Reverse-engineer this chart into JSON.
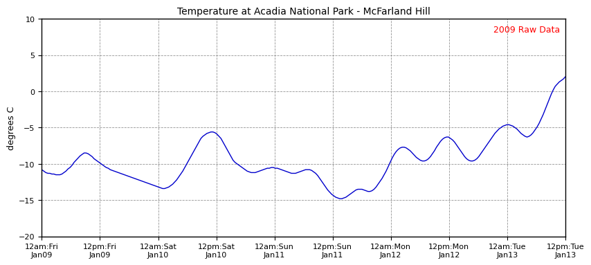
{
  "title": "Temperature at Acadia National Park - McFarland Hill",
  "ylabel": "degrees C",
  "annotation": "2009 Raw Data",
  "annotation_color": "#ff0000",
  "line_color": "#0000cc",
  "background_color": "#ffffff",
  "ylim": [
    -20,
    10
  ],
  "yticks": [
    -20,
    -15,
    -10,
    -5,
    0,
    5,
    10
  ],
  "x_tick_labels": [
    "12am:Fri\nJan09",
    "12pm:Fri\nJan09",
    "12am:Sat\nJan10",
    "12pm:Sat\nJan10",
    "12am:Sun\nJan11",
    "12pm:Sun\nJan11",
    "12am:Mon\nJan12",
    "12pm:Mon\nJan12",
    "12am:Tue\nJan13",
    "12pm:Tue\nJan13"
  ],
  "temperature_data": [
    -10.8,
    -11.0,
    -11.2,
    -11.3,
    -11.3,
    -11.4,
    -11.4,
    -11.5,
    -11.5,
    -11.5,
    -11.4,
    -11.2,
    -11.0,
    -10.7,
    -10.5,
    -10.2,
    -9.8,
    -9.5,
    -9.2,
    -8.9,
    -8.7,
    -8.5,
    -8.5,
    -8.6,
    -8.8,
    -9.0,
    -9.3,
    -9.5,
    -9.7,
    -9.9,
    -10.1,
    -10.3,
    -10.5,
    -10.6,
    -10.8,
    -10.9,
    -11.0,
    -11.1,
    -11.2,
    -11.3,
    -11.4,
    -11.5,
    -11.6,
    -11.7,
    -11.8,
    -11.9,
    -12.0,
    -12.1,
    -12.2,
    -12.3,
    -12.4,
    -12.5,
    -12.6,
    -12.7,
    -12.8,
    -12.9,
    -13.0,
    -13.1,
    -13.2,
    -13.3,
    -13.4,
    -13.4,
    -13.3,
    -13.2,
    -13.0,
    -12.8,
    -12.5,
    -12.2,
    -11.8,
    -11.4,
    -11.0,
    -10.5,
    -10.0,
    -9.5,
    -9.0,
    -8.5,
    -8.0,
    -7.5,
    -7.0,
    -6.5,
    -6.2,
    -6.0,
    -5.8,
    -5.7,
    -5.6,
    -5.6,
    -5.7,
    -5.9,
    -6.2,
    -6.5,
    -7.0,
    -7.5,
    -8.0,
    -8.5,
    -9.0,
    -9.5,
    -9.8,
    -10.0,
    -10.2,
    -10.4,
    -10.6,
    -10.8,
    -11.0,
    -11.1,
    -11.2,
    -11.2,
    -11.2,
    -11.1,
    -11.0,
    -10.9,
    -10.8,
    -10.7,
    -10.6,
    -10.6,
    -10.5,
    -10.5,
    -10.6,
    -10.6,
    -10.7,
    -10.8,
    -10.9,
    -11.0,
    -11.1,
    -11.2,
    -11.3,
    -11.3,
    -11.3,
    -11.2,
    -11.1,
    -11.0,
    -10.9,
    -10.8,
    -10.8,
    -10.8,
    -10.9,
    -11.1,
    -11.3,
    -11.6,
    -12.0,
    -12.4,
    -12.8,
    -13.2,
    -13.6,
    -13.9,
    -14.2,
    -14.4,
    -14.6,
    -14.7,
    -14.8,
    -14.8,
    -14.7,
    -14.6,
    -14.4,
    -14.2,
    -14.0,
    -13.8,
    -13.6,
    -13.5,
    -13.5,
    -13.5,
    -13.6,
    -13.7,
    -13.8,
    -13.8,
    -13.7,
    -13.5,
    -13.2,
    -12.8,
    -12.4,
    -12.0,
    -11.5,
    -11.0,
    -10.4,
    -9.8,
    -9.2,
    -8.7,
    -8.3,
    -8.0,
    -7.8,
    -7.7,
    -7.7,
    -7.8,
    -8.0,
    -8.2,
    -8.5,
    -8.8,
    -9.1,
    -9.3,
    -9.5,
    -9.6,
    -9.6,
    -9.5,
    -9.3,
    -9.0,
    -8.6,
    -8.2,
    -7.7,
    -7.3,
    -6.9,
    -6.6,
    -6.4,
    -6.3,
    -6.3,
    -6.5,
    -6.7,
    -7.0,
    -7.4,
    -7.8,
    -8.2,
    -8.6,
    -9.0,
    -9.3,
    -9.5,
    -9.6,
    -9.6,
    -9.5,
    -9.3,
    -9.0,
    -8.6,
    -8.2,
    -7.8,
    -7.4,
    -7.0,
    -6.6,
    -6.2,
    -5.8,
    -5.5,
    -5.2,
    -5.0,
    -4.8,
    -4.7,
    -4.6,
    -4.6,
    -4.7,
    -4.8,
    -5.0,
    -5.2,
    -5.5,
    -5.8,
    -6.0,
    -6.2,
    -6.3,
    -6.2,
    -6.0,
    -5.7,
    -5.3,
    -4.9,
    -4.4,
    -3.8,
    -3.2,
    -2.5,
    -1.8,
    -1.1,
    -0.4,
    0.2,
    0.7,
    1.0,
    1.3,
    1.5,
    1.7,
    2.0
  ]
}
